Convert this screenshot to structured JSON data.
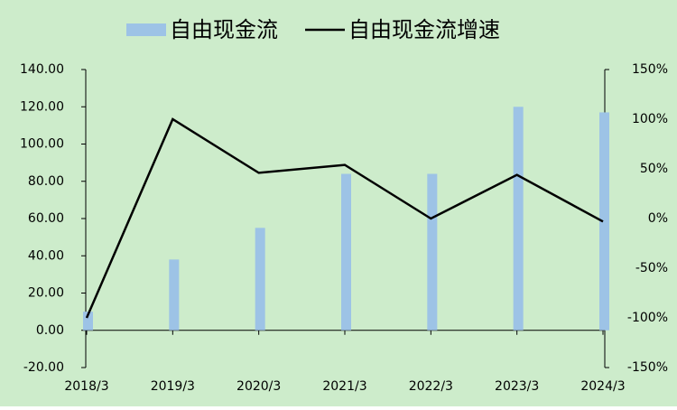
{
  "chart_data": {
    "type": "bar-line",
    "categories": [
      "2018/3",
      "2019/3",
      "2020/3",
      "2021/3",
      "2022/3",
      "2023/3",
      "2024/3"
    ],
    "series": [
      {
        "name": "自由现金流",
        "type": "bar",
        "color": "#9dc3e6",
        "values": [
          10,
          38,
          55,
          84,
          84,
          120,
          117
        ]
      },
      {
        "name": "自由现金流增速",
        "type": "line",
        "axis": "y2",
        "color": "#000000",
        "values": [
          -100,
          100,
          46,
          54,
          0,
          44,
          -3
        ]
      }
    ],
    "ylim": [
      -20,
      140
    ],
    "yticks": [
      {
        "value": -20,
        "label": "-20.00"
      },
      {
        "value": 0,
        "label": "0.00"
      },
      {
        "value": 20,
        "label": "20.00"
      },
      {
        "value": 40,
        "label": "40.00"
      },
      {
        "value": 60,
        "label": "60.00"
      },
      {
        "value": 80,
        "label": "80.00"
      },
      {
        "value": 100,
        "label": "100.00"
      },
      {
        "value": 120,
        "label": "120.00"
      },
      {
        "value": 140,
        "label": "140.00"
      }
    ],
    "y2lim": [
      -150,
      150
    ],
    "y2ticks": [
      {
        "value": -150,
        "label": "-150%"
      },
      {
        "value": -100,
        "label": "-100%"
      },
      {
        "value": -50,
        "label": "-50%"
      },
      {
        "value": 0,
        "label": "0%"
      },
      {
        "value": 50,
        "label": "50%"
      },
      {
        "value": 100,
        "label": "100%"
      },
      {
        "value": 150,
        "label": "150%"
      }
    ],
    "legend": "top",
    "background": "#cdeccb"
  }
}
